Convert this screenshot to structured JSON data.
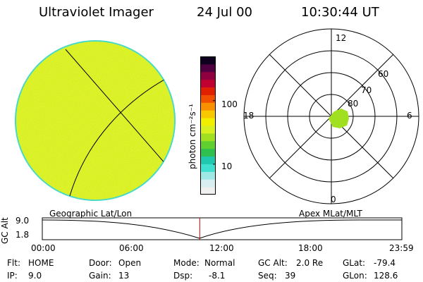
{
  "header": {
    "title": "Ultraviolet Imager",
    "date": "24 Jul 00",
    "time": "10:30:44 UT"
  },
  "colorbar": {
    "unit_label": "photon cm⁻²s⁻¹",
    "ticks": [
      "100",
      "10"
    ],
    "colors": [
      "#f0f0f0",
      "#d8eef0",
      "#9fe8e6",
      "#3fe0d0",
      "#20c8b0",
      "#30c050",
      "#60d030",
      "#a0e020",
      "#d8f020",
      "#f0f000",
      "#f8c800",
      "#f89000",
      "#f05000",
      "#e02000",
      "#c00030",
      "#900040",
      "#500040",
      "#100020"
    ]
  },
  "polar": {
    "mlt_labels": {
      "top": "12",
      "left": "18",
      "right": "6",
      "bottom": "0"
    },
    "lat_labels": [
      "60",
      "70",
      "80"
    ]
  },
  "timeline": {
    "left_title": "Geographic Lat/Lon",
    "right_title": "Apex MLat/MLT",
    "y_axis_label": "GC Alt",
    "y_ticks": [
      "9.0",
      "1.8"
    ],
    "x_ticks": [
      "00:00",
      "06:00",
      "12:00",
      "18:00",
      "23:59"
    ],
    "current_time_fraction": 0.4379
  },
  "info": {
    "flt_label": "Flt:",
    "flt_value": "HOME",
    "ip_label": "IP:",
    "ip_value": "9.0",
    "door_label": "Door:",
    "door_value": "Open",
    "gain_label": "Gain:",
    "gain_value": "13",
    "mode_label": "Mode:",
    "mode_value": "Normal",
    "dsp_label": "Dsp:",
    "dsp_value": "-8.1",
    "gcalt_label": "GC Alt:",
    "gcalt_value": "2.0 Re",
    "seq_label": "Seq:",
    "seq_value": "39",
    "glat_label": "GLat:",
    "glat_value": "-79.4",
    "glon_label": "GLon:",
    "glon_value": "128.6"
  },
  "colors": {
    "earth_fill": "#d8f020",
    "earth_rim": "#40d8c8",
    "time_marker": "#c00000",
    "aurora_fill": "#a0e020"
  }
}
